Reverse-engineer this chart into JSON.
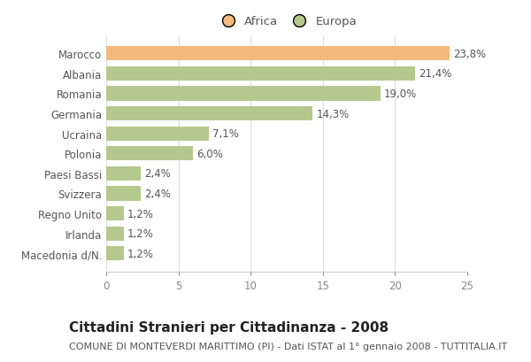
{
  "categories": [
    "Marocco",
    "Albania",
    "Romania",
    "Germania",
    "Ucraina",
    "Polonia",
    "Paesi Bassi",
    "Svizzera",
    "Regno Unito",
    "Irlanda",
    "Macedonia d/N."
  ],
  "values": [
    23.8,
    21.4,
    19.0,
    14.3,
    7.1,
    6.0,
    2.4,
    2.4,
    1.2,
    1.2,
    1.2
  ],
  "labels": [
    "23,8%",
    "21,4%",
    "19,0%",
    "14,3%",
    "7,1%",
    "6,0%",
    "2,4%",
    "2,4%",
    "1,2%",
    "1,2%",
    "1,2%"
  ],
  "colors": [
    "#f4b97d",
    "#b5c98e",
    "#b5c98e",
    "#b5c98e",
    "#b5c98e",
    "#b5c98e",
    "#b5c98e",
    "#b5c98e",
    "#b5c98e",
    "#b5c98e",
    "#b5c98e"
  ],
  "legend_labels": [
    "Africa",
    "Europa"
  ],
  "legend_colors": [
    "#f4b97d",
    "#b5c98e"
  ],
  "title": "Cittadini Stranieri per Cittadinanza - 2008",
  "subtitle": "COMUNE DI MONTEVERDI MARITTIMO (PI) - Dati ISTAT al 1° gennaio 2008 - TUTTITALIA.IT",
  "xlim": [
    0,
    25
  ],
  "xticks": [
    0,
    5,
    10,
    15,
    20,
    25
  ],
  "background_color": "#ffffff",
  "bar_height": 0.72,
  "title_fontsize": 11,
  "subtitle_fontsize": 8,
  "label_fontsize": 8.5,
  "tick_fontsize": 8.5,
  "legend_fontsize": 9.5,
  "ytick_color": "#555555",
  "xtick_color": "#888888",
  "label_color": "#555555",
  "grid_color": "#dddddd"
}
